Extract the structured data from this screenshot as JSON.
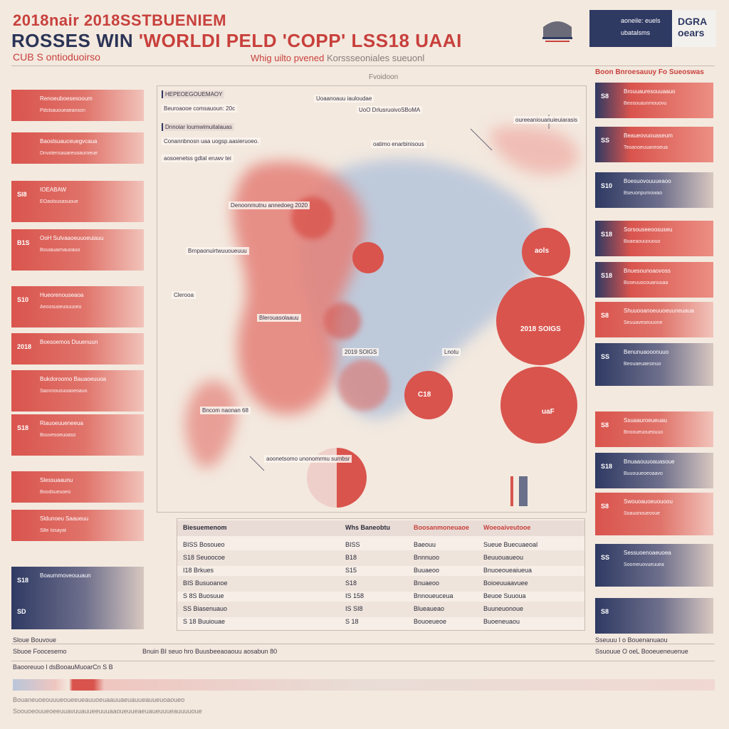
{
  "header": {
    "title_line_1": "2018nair 2018SSTBUENIEM",
    "title_line_2_a": "ROSSES WIN ",
    "title_line_2_b": "'WORLDI PELD  'COPP' LSS18  UAAI",
    "subtitle_left": "CUB S ontioduoirso",
    "subtitle_center_a": "Whig uilto pvened",
    "subtitle_center_b": " Korssseoniales  sueuonl",
    "box_label_1": "aoneile: euels",
    "box_label_2": "ubatalsms",
    "box_badge": "DGRA oears"
  },
  "center": {
    "heading": "Fvoidoon",
    "callouts": [
      "HEPEOEGOUEMAOY",
      "Beuroaooe comsauoun: 20c",
      "Dnnoiar loumwimuitalauas",
      "Conannbnosn uaa uogsp.aasieruoeo.",
      "aosoenetss gdtal eruwv tei",
      "Uoaanoauu iauloudae",
      "UoO DrlusruoivoSBoMA",
      "oatimo enarbinisous",
      "oureeaniouanuieuiarasis",
      "Denoonmutnu annedoeg 2020",
      "Brnpaonuirtwuuoueuuu",
      "Clerooa",
      "Blerouasolaauu",
      "2019 SOIGS",
      "Lnotu",
      "Bncom naonan 68",
      "aoonetsomo unonomrmu sumbsr"
    ],
    "circle_labels": [
      "aols",
      "2018 SOIGS",
      "uaF",
      "C18"
    ]
  },
  "left_bars": [
    {
      "num": "",
      "t1": "Renoeuboesesooum",
      "t2": "Pdolsauoueaeanson"
    },
    {
      "num": "",
      "t1": "Baoslsuauceuegvcaua",
      "t2": "Dnvotensauareuoauroeue"
    },
    {
      "num": "Sl8",
      "t1": "IOEABAW",
      "t2": "EOaolousasuoue"
    },
    {
      "num": "B1S",
      "t1": "OoH Sulvaaoeuuoeuiauu",
      "t2": "Bouiauaimauoauo"
    },
    {
      "num": "S10",
      "t1": "Hueorenouseaoa",
      "t2": "Aeoosuoeusuuoeo"
    },
    {
      "num": "2018",
      "t1": "Boesoemos Duuenuun",
      "t2": ""
    },
    {
      "num": "",
      "t1": "Bukdoroomo Bauaoeuuoa",
      "t2": "Saonnousuoaoeoauo"
    },
    {
      "num": "S18",
      "t1": "Riauoeuueneeua",
      "t2": "Bouvesoeuoaso"
    },
    {
      "num": "",
      "t1": "Slessuaaunu",
      "t2": "Boodsueuoeo"
    },
    {
      "num": "",
      "t1": "Sldunoeu Saaueuu",
      "t2": "S8e Iosayat"
    },
    {
      "num": "S18",
      "t1": "Boaummoveouuaun",
      "t2": ""
    },
    {
      "num": "SD",
      "t1": "",
      "t2": ""
    }
  ],
  "right_bars": [
    {
      "num": "S8",
      "t1": "Brouuauresouuaauo",
      "t2": "Beosouaunmouovu"
    },
    {
      "num": "SS",
      "t1": "Beaueovuouaseum",
      "t2": "Teoanoeuuaneoeua"
    },
    {
      "num": "S10",
      "t1": "Boesuovouuueaoo",
      "t2": "Bseuonpumowao"
    },
    {
      "num": "S18",
      "t1": "Sorsouseeoosuseu",
      "t2": "Boaeaouuououo"
    },
    {
      "num": "S18",
      "t1": "Bnuesounoaovoss",
      "t2": "Boseuuocouanuuaa"
    },
    {
      "num": "S8",
      "t1": "Shuuooanoeuuoeuuneuaua",
      "t2": "Seuuaveseuuone"
    },
    {
      "num": "SS",
      "t1": "Benunuaooonuuo",
      "t2": "Beouaeuaesinuo"
    },
    {
      "num": "S8",
      "t1": "Ssuaauroeueuau",
      "t2": "Bnooueuoueouuo"
    },
    {
      "num": "S18",
      "t1": "Bnuaaouuoauasoue",
      "t2": "Buuouueoeoaavo"
    },
    {
      "num": "S8",
      "t1": "Swouoauoeuouoou",
      "t2": "Soauonoueovue"
    },
    {
      "num": "SS",
      "t1": "Sessuoenoaeuoea",
      "t2": "Soomeuovueuuea"
    },
    {
      "num": "S8",
      "t1": "",
      "t2": ""
    }
  ],
  "right_heading": "Boon Bnroesauuy Fo Sueoswas",
  "table": {
    "header": [
      "Biesuemenom",
      "Whs Baneobtu",
      "Boosanmoneuaoe",
      "Woeoaiveutooe"
    ],
    "rows": [
      [
        "BISS  Bosoueo",
        "BISS",
        "Baeouu",
        "Sueue Buecuaeoal"
      ],
      [
        "S18  Seuoocoe",
        "B18",
        "Bnnnuoo",
        "Beuuouaueou"
      ],
      [
        "I18  Brkues",
        "S15",
        "Buuaeoo",
        "Bnuoeoueaiueua"
      ],
      [
        "BIS  Busuoanoe",
        "S18",
        "Bnuaeoo",
        "Boioeuuaavuee"
      ],
      [
        "S 8S  Buosuue",
        "IS 158",
        "Bnnoueuceua",
        "Beuoe Suuoua"
      ],
      [
        "SS  Biasenuauo",
        "IS  SI8",
        "Blueaueao",
        "Buuneuonoue"
      ],
      [
        "S 18  Buuiouae",
        "S 18",
        "Bouoeueoe",
        "Buoeneuaou"
      ]
    ]
  },
  "footer": {
    "left_1": "Sloue Bouvoue",
    "left_2": "Sbuoe Foocesemo",
    "center_1": "Bnuin BI seuo hro Buusbeeaoaouu aosabun 80",
    "right_1": "Sseuuu I o Bouenanuaou",
    "right_2": "Ssuouue O oeL Booeueneuenue",
    "bottom_1": "Baooreuuo l dsBooauMuoarCn S B",
    "bottom_2": "Bouaneuoeouuueoueeueauuoeuaauuaeuauueauueuoaoueo",
    "bottom_3": "Soouoeouueoeeuuavuuauueeuuuaaoueuueaeuaueuuueauuuuoue"
  },
  "colors": {
    "accent_red": "#d9544d",
    "navy": "#2f3a63",
    "background": "#f3e9df"
  }
}
